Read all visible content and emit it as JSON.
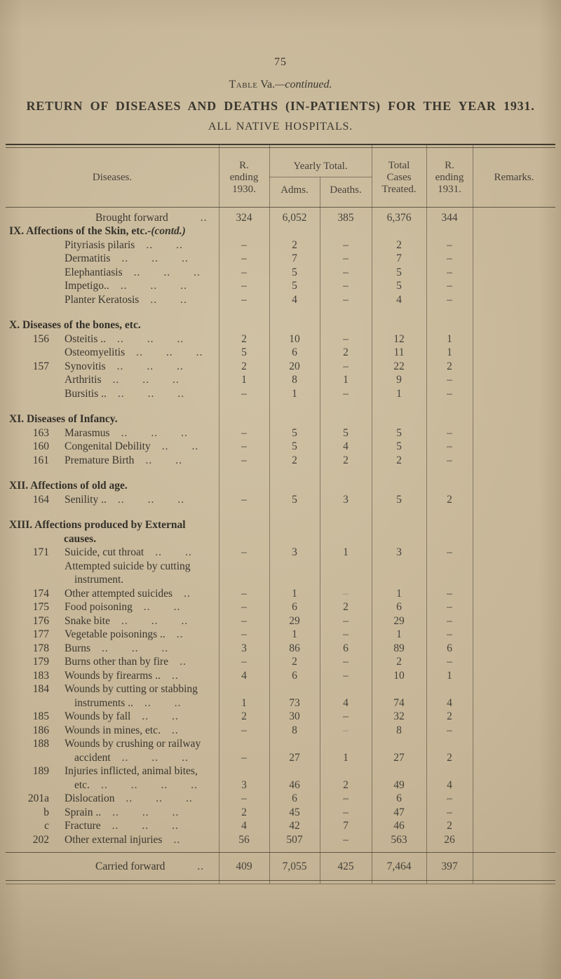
{
  "page_number": "75",
  "caption": {
    "table_word": "Table",
    "table_ref": " Va.",
    "continued": "—continued."
  },
  "title": "RETURN OF DISEASES AND DEATHS (IN-PATIENTS) FOR THE YEAR 1931.",
  "subtitle": "ALL NATIVE HOSPITALS.",
  "table": {
    "columns": {
      "diseases": "Diseases.",
      "r_ending_1930": [
        "R.",
        "ending",
        "1930."
      ],
      "yearly_total": "Yearly Total.",
      "adms": "Adms.",
      "deaths": "Deaths.",
      "total_cases": [
        "Total",
        "Cases",
        "Treated."
      ],
      "r_ending_1931": [
        "R.",
        "ending",
        "1931."
      ],
      "remarks": "Remarks."
    },
    "rows": [
      {
        "t": "sum",
        "label": "Brought forward",
        "dots": "..",
        "values": [
          "324",
          "6,052",
          "385",
          "6,376",
          "344",
          ""
        ]
      },
      {
        "t": "section",
        "label": "IX. Affections of the Skin, etc.-",
        "it": "(contd.)"
      },
      {
        "t": "item",
        "idx": "",
        "label": "Pityriasis pilaris",
        "dots": "..  ..",
        "values": [
          "–",
          "2",
          "–",
          "2",
          "–",
          ""
        ]
      },
      {
        "t": "item",
        "idx": "",
        "label": "Dermatitis",
        "dots": "..  ..  ..",
        "values": [
          "–",
          "7",
          "–",
          "7",
          "–",
          ""
        ]
      },
      {
        "t": "item",
        "idx": "",
        "label": "Elephantiasis",
        "dots": "..  ..  ..",
        "values": [
          "–",
          "5",
          "–",
          "5",
          "–",
          ""
        ]
      },
      {
        "t": "item",
        "idx": "",
        "label": "Impetigo..",
        "dots": "..  ..  ..",
        "values": [
          "–",
          "5",
          "–",
          "5",
          "–",
          ""
        ]
      },
      {
        "t": "item",
        "idx": "",
        "label": "Planter Keratosis",
        "dots": "..  ..",
        "values": [
          "–",
          "4",
          "–",
          "4",
          "–",
          ""
        ]
      },
      {
        "t": "gap"
      },
      {
        "t": "section",
        "label": "X. Diseases of the bones, etc."
      },
      {
        "t": "item",
        "idx": "156",
        "label": "Osteitis ..",
        "dots": "..  ..  ..",
        "values": [
          "2",
          "10",
          "–",
          "12",
          "1",
          ""
        ]
      },
      {
        "t": "item",
        "idx": "",
        "label": "Osteomyelitis",
        "dots": "..  ..  ..",
        "values": [
          "5",
          "6",
          "2",
          "11",
          "1",
          ""
        ]
      },
      {
        "t": "item",
        "idx": "157",
        "label": "Synovitis",
        "dots": "..  ..  ..",
        "values": [
          "2",
          "20",
          "–",
          "22",
          "2",
          ""
        ]
      },
      {
        "t": "item",
        "idx": "",
        "label": "Arthritis",
        "dots": "..  ..  ..",
        "values": [
          "1",
          "8",
          "1",
          "9",
          "–",
          ""
        ]
      },
      {
        "t": "item",
        "idx": "",
        "label": "Bursitis ..",
        "dots": "..  ..  ..",
        "values": [
          "–",
          "1",
          "–",
          "1",
          "–",
          ""
        ]
      },
      {
        "t": "gap"
      },
      {
        "t": "section",
        "label": "XI. Diseases of Infancy."
      },
      {
        "t": "item",
        "idx": "163",
        "label": "Marasmus",
        "dots": "..  ..  ..",
        "values": [
          "–",
          "5",
          "5",
          "5",
          "–",
          ""
        ]
      },
      {
        "t": "item",
        "idx": "160",
        "label": "Congenital Debility",
        "dots": "..  ..",
        "values": [
          "–",
          "5",
          "4",
          "5",
          "–",
          ""
        ]
      },
      {
        "t": "item",
        "idx": "161",
        "label": "Premature Birth",
        "dots": "..  ..",
        "values": [
          "–",
          "2",
          "2",
          "2",
          "–",
          ""
        ]
      },
      {
        "t": "gap"
      },
      {
        "t": "section",
        "label": "XII. Affections of old age."
      },
      {
        "t": "item",
        "idx": "164",
        "label": "Senility ..",
        "dots": "..  ..  ..",
        "values": [
          "–",
          "5",
          "3",
          "5",
          "2",
          ""
        ]
      },
      {
        "t": "gap"
      },
      {
        "t": "section",
        "label": "XIII. Affections produced by External"
      },
      {
        "t": "sectioncont",
        "label": "causes."
      },
      {
        "t": "item",
        "idx": "171",
        "label": "Suicide, cut throat",
        "dots": "..  ..",
        "values": [
          "–",
          "3",
          "1",
          "3",
          "–",
          ""
        ]
      },
      {
        "t": "cont",
        "label": "Attempted suicide by cutting"
      },
      {
        "t": "cont2",
        "label": "instrument."
      },
      {
        "t": "item",
        "idx": "174",
        "label": "Other attempted suicides",
        "dots": "..",
        "values": [
          "–",
          "1",
          "–",
          "1",
          "–",
          ""
        ],
        "faint_deaths": true
      },
      {
        "t": "item",
        "idx": "175",
        "label": "Food poisoning",
        "dots": "..  ..",
        "values": [
          "–",
          "6",
          "2",
          "6",
          "–",
          ""
        ]
      },
      {
        "t": "item",
        "idx": "176",
        "label": "Snake bite",
        "dots": "..  ..  ..",
        "values": [
          "–",
          "29",
          "–",
          "29",
          "–",
          ""
        ]
      },
      {
        "t": "item",
        "idx": "177",
        "label": "Vegetable poisonings ..",
        "dots": "..",
        "values": [
          "–",
          "1",
          "–",
          "1",
          "–",
          ""
        ]
      },
      {
        "t": "item",
        "idx": "178",
        "label": "Burns",
        "dots": "..  ..  ..",
        "values": [
          "3",
          "86",
          "6",
          "89",
          "6",
          ""
        ]
      },
      {
        "t": "item",
        "idx": "179",
        "label": "Burns other than by fire",
        "dots": "..",
        "values": [
          "–",
          "2",
          "–",
          "2",
          "–",
          ""
        ]
      },
      {
        "t": "item",
        "idx": "183",
        "label": "Wounds by firearms ..",
        "dots": "..",
        "values": [
          "4",
          "6",
          "–",
          "10",
          "1",
          ""
        ]
      },
      {
        "t": "item",
        "idx": "184",
        "label": "Wounds by cutting or stabbing"
      },
      {
        "t": "cont2",
        "label": "instruments ..",
        "dots": "..  ..",
        "values": [
          "1",
          "73",
          "4",
          "74",
          "4",
          ""
        ]
      },
      {
        "t": "item",
        "idx": "185",
        "label": "Wounds by fall",
        "dots": "..  ..",
        "values": [
          "2",
          "30",
          "–",
          "32",
          "2",
          ""
        ]
      },
      {
        "t": "item",
        "idx": "186",
        "label": "Wounds in mines, etc.",
        "dots": "..",
        "values": [
          "–",
          "8",
          "–",
          "8",
          "–",
          ""
        ],
        "faint_deaths": true
      },
      {
        "t": "item",
        "idx": "188",
        "label": "Wounds by crushing or railway"
      },
      {
        "t": "cont2",
        "label": "accident",
        "dots": "..  ..  ..",
        "values": [
          "–",
          "27",
          "1",
          "27",
          "2",
          ""
        ]
      },
      {
        "t": "item",
        "idx": "189",
        "label": "Injuries inflicted, animal bites,"
      },
      {
        "t": "cont2",
        "label": "etc.",
        "dots": "..  ..  ..  ..",
        "values": [
          "3",
          "46",
          "2",
          "49",
          "4",
          ""
        ]
      },
      {
        "t": "item",
        "idx": "201a",
        "label": "Dislocation",
        "dots": "..  ..  ..",
        "values": [
          "–",
          "6",
          "–",
          "6",
          "–",
          ""
        ]
      },
      {
        "t": "item",
        "idx": "b",
        "label": "Sprain ..",
        "dots": "..  ..  ..",
        "values": [
          "2",
          "45",
          "–",
          "47",
          "–",
          ""
        ]
      },
      {
        "t": "item",
        "idx": "c",
        "label": "Fracture",
        "dots": "..  ..  ..",
        "values": [
          "4",
          "42",
          "7",
          "46",
          "2",
          ""
        ]
      },
      {
        "t": "item",
        "idx": "202",
        "label": "Other external injuries",
        "dots": "..",
        "values": [
          "56",
          "507",
          "–",
          "563",
          "26",
          ""
        ]
      }
    ],
    "footer": {
      "label": "Carried forward",
      "dots": "..",
      "values": [
        "409",
        "7,055",
        "425",
        "7,464",
        "397",
        ""
      ]
    }
  },
  "colors": {
    "paper": "#c6b596",
    "ink": "#3a372f",
    "rule": "#8d8068"
  }
}
